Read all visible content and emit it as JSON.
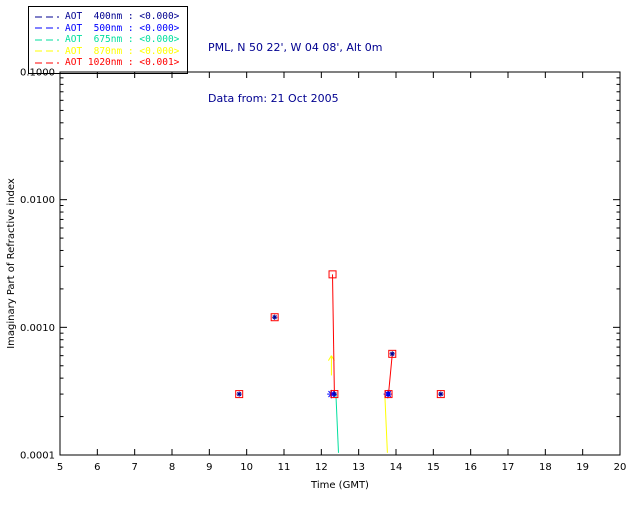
{
  "header": {
    "line1": "PML, N 50 22', W 04 08', Alt 0m",
    "line2": "Data from: 21 Oct 2005",
    "color": "#000090"
  },
  "legend": {
    "position": "top-left",
    "items": [
      {
        "label": "AOT  400nm : <0.000>",
        "color": "#000090"
      },
      {
        "label": "AOT  500nm : <0.000>",
        "color": "#0000ff"
      },
      {
        "label": "AOT  675nm : <0.000>",
        "color": "#00df9e"
      },
      {
        "label": "AOT  870nm : <0.000>",
        "color": "#ffff00"
      },
      {
        "label": "AOT 1020nm : <0.001>",
        "color": "#ff0000"
      }
    ]
  },
  "chart_data": {
    "type": "scatter",
    "title": "",
    "xlabel": "Time (GMT)",
    "ylabel": "Imaginary Part of Refractive index",
    "xlim": [
      5,
      20
    ],
    "ylim": [
      0.0001,
      0.1
    ],
    "yscale": "log",
    "grid": false,
    "x_ticks": [
      5,
      6,
      7,
      8,
      9,
      10,
      11,
      12,
      13,
      14,
      15,
      16,
      17,
      18,
      19,
      20
    ],
    "y_ticks": [
      0.0001,
      0.001,
      0.01,
      0.1
    ],
    "y_tick_labels": [
      "0.0001",
      "0.0010",
      "0.0100",
      "0.1000"
    ],
    "series": [
      {
        "name": "AOT 400nm",
        "color": "#000090",
        "marker": "asterisk",
        "marker_size": 2.6,
        "points": [
          [
            9.8,
            0.0003
          ],
          [
            10.75,
            0.0012
          ],
          [
            12.35,
            0.0003
          ],
          [
            13.8,
            0.0003
          ],
          [
            13.9,
            0.00062
          ],
          [
            15.2,
            0.0003
          ]
        ]
      },
      {
        "name": "AOT 500nm",
        "color": "#0000ff",
        "marker": "asterisk",
        "marker_size": 4.2,
        "points": [
          [
            12.27,
            0.0003
          ],
          [
            13.78,
            0.0003
          ]
        ]
      },
      {
        "name": "AOT 675nm",
        "color": "#00df9e",
        "segments": [
          [
            [
              12.39,
              0.0003
            ],
            [
              12.46,
              0.000104
            ]
          ]
        ]
      },
      {
        "name": "AOT 870nm",
        "color": "#ffff00",
        "segments": [
          [
            [
              13.7,
              0.0003
            ],
            [
              13.77,
              0.000104
            ]
          ]
        ],
        "arrow": {
          "x": 12.27,
          "y_from": 0.00042,
          "y_to": 0.0006
        }
      },
      {
        "name": "AOT 1020nm",
        "color": "#ff0000",
        "marker": "square",
        "marker_size": 7,
        "segments": [
          [
            [
              12.3,
              0.0026
            ],
            [
              12.35,
              0.0003
            ]
          ],
          [
            [
              13.8,
              0.0003
            ],
            [
              13.9,
              0.00062
            ]
          ]
        ],
        "points": [
          [
            9.8,
            0.0003
          ],
          [
            10.75,
            0.0012
          ],
          [
            12.3,
            0.0026
          ],
          [
            12.35,
            0.0003
          ],
          [
            13.8,
            0.0003
          ],
          [
            13.9,
            0.00062
          ],
          [
            15.2,
            0.0003
          ]
        ]
      }
    ]
  }
}
